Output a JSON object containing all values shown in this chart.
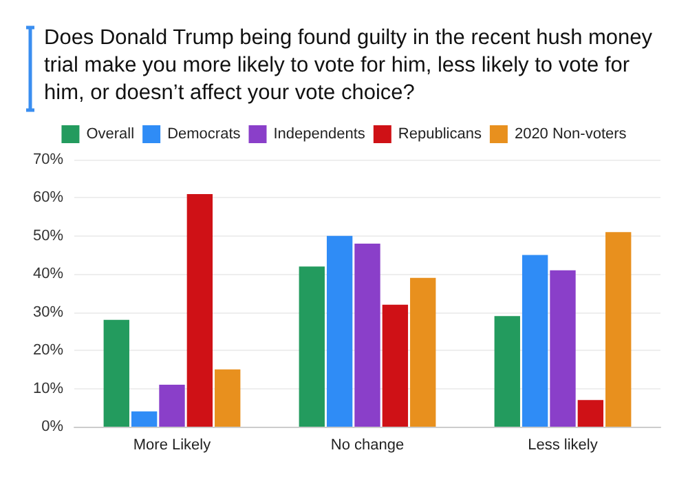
{
  "chart_data": {
    "type": "bar",
    "title": "Does Donald Trump being found guilty in the recent hush money trial make you more likely to vote for him, less likely to vote for him, or doesn’t affect your vote choice?",
    "categories": [
      "More Likely",
      "No change",
      "Less likely"
    ],
    "series": [
      {
        "name": "Overall",
        "color": "#239b5e",
        "values": [
          28,
          42,
          29
        ]
      },
      {
        "name": "Democrats",
        "color": "#2f8cf6",
        "values": [
          4,
          50,
          45
        ]
      },
      {
        "name": "Independents",
        "color": "#8a3fc9",
        "values": [
          11,
          48,
          41
        ]
      },
      {
        "name": "Republicans",
        "color": "#cf1116",
        "values": [
          61,
          32,
          7
        ]
      },
      {
        "name": "2020 Non-voters",
        "color": "#e8901e",
        "values": [
          15,
          39,
          51
        ]
      }
    ],
    "ylim": [
      0,
      70
    ],
    "yticks": [
      {
        "value": 0,
        "label": "0%"
      },
      {
        "value": 10,
        "label": "10%"
      },
      {
        "value": 20,
        "label": "20%"
      },
      {
        "value": 30,
        "label": "30%"
      },
      {
        "value": 40,
        "label": "40%"
      },
      {
        "value": 50,
        "label": "50%"
      },
      {
        "value": 60,
        "label": "60%"
      },
      {
        "value": 70,
        "label": "70%"
      }
    ],
    "grid": "y",
    "legend": "top"
  }
}
